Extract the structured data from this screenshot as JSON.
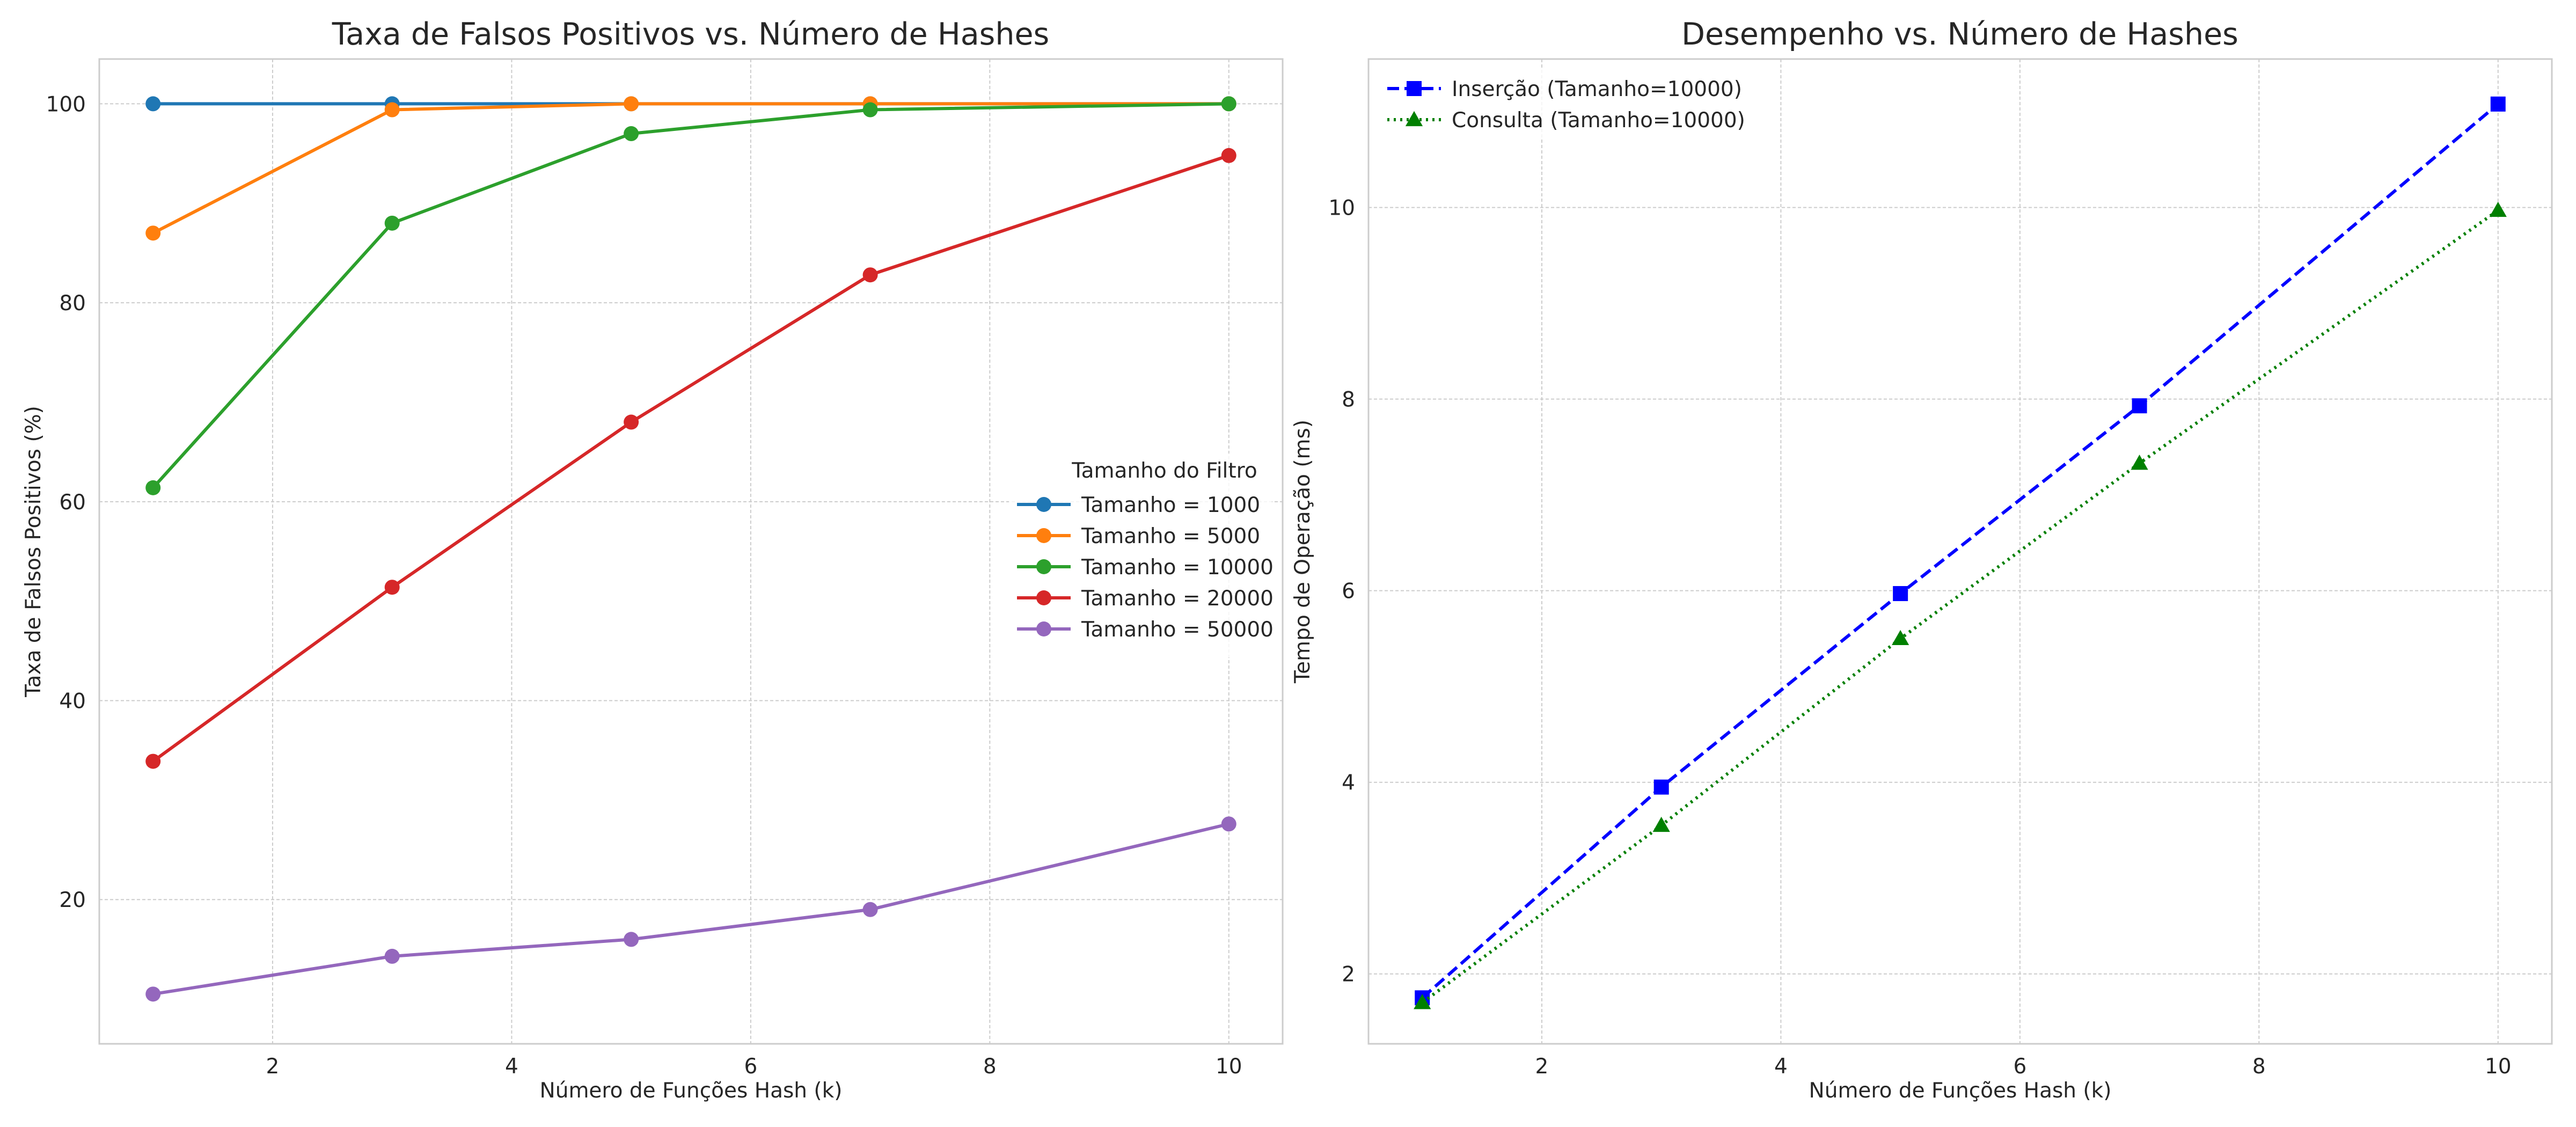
{
  "chart_data": [
    {
      "type": "line",
      "title": "Taxa de Falsos Positivos vs. Número de Hashes",
      "xlabel": "Número de Funções Hash (k)",
      "ylabel": "Taxa de Falsos Positivos (%)",
      "xlim": [
        0.55,
        10.45
      ],
      "ylim": [
        5.5,
        104.5
      ],
      "xticks": [
        2,
        4,
        6,
        8,
        10
      ],
      "yticks": [
        20,
        40,
        60,
        80,
        100
      ],
      "grid": true,
      "legend": {
        "title": "Tamanho do Filtro",
        "placement": "center-right"
      },
      "x": [
        1,
        3,
        5,
        7,
        10
      ],
      "series": [
        {
          "name": "Tamanho = 1000",
          "color": "#1f77b4",
          "marker": "circle",
          "linestyle": "solid",
          "values": [
            100,
            100,
            100,
            100,
            100
          ]
        },
        {
          "name": "Tamanho = 5000",
          "color": "#ff7f0e",
          "marker": "circle",
          "linestyle": "solid",
          "values": [
            87,
            99.4,
            100,
            100,
            100
          ]
        },
        {
          "name": "Tamanho = 10000",
          "color": "#2ca02c",
          "marker": "circle",
          "linestyle": "solid",
          "values": [
            61.4,
            88,
            97,
            99.4,
            100
          ]
        },
        {
          "name": "Tamanho = 20000",
          "color": "#d62728",
          "marker": "circle",
          "linestyle": "solid",
          "values": [
            33.9,
            51.4,
            68,
            82.8,
            94.8
          ]
        },
        {
          "name": "Tamanho = 50000",
          "color": "#9467bd",
          "marker": "circle",
          "linestyle": "solid",
          "values": [
            10.5,
            14.3,
            16,
            19,
            27.6
          ]
        }
      ]
    },
    {
      "type": "line",
      "title": "Desempenho vs. Número de Hashes",
      "xlabel": "Número de Funções Hash (k)",
      "ylabel": "Tempo de Operação (ms)",
      "xlim": [
        0.55,
        10.45
      ],
      "ylim": [
        1.27,
        11.55
      ],
      "xticks": [
        2,
        4,
        6,
        8,
        10
      ],
      "yticks": [
        2,
        4,
        6,
        8,
        10
      ],
      "grid": true,
      "legend": {
        "title": "",
        "placement": "top-left"
      },
      "x": [
        1,
        3,
        5,
        7,
        10
      ],
      "series": [
        {
          "name": "Inserção (Tamanho=10000)",
          "color": "#0000ff",
          "marker": "square",
          "linestyle": "dashed",
          "values": [
            1.75,
            3.95,
            5.97,
            7.93,
            11.08
          ]
        },
        {
          "name": "Consulta (Tamanho=10000)",
          "color": "#008000",
          "marker": "triangle",
          "linestyle": "dotted",
          "values": [
            1.7,
            3.55,
            5.5,
            7.33,
            9.97
          ]
        }
      ]
    }
  ]
}
